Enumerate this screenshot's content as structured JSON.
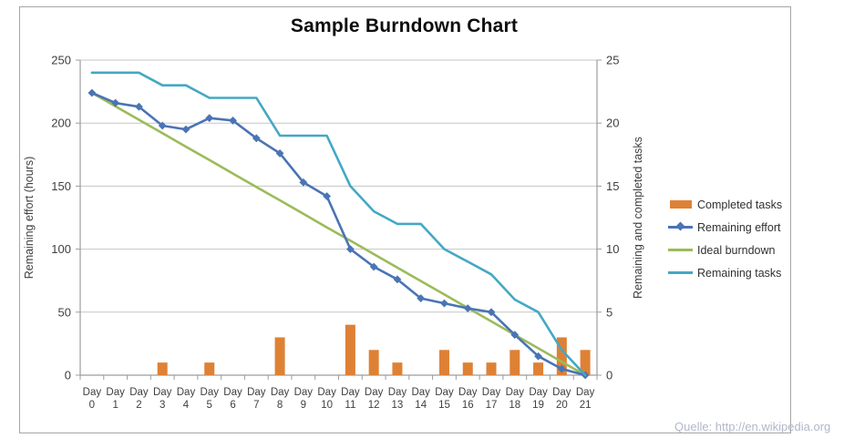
{
  "title": "Sample Burndown Chart",
  "watermark": "Quelle: http://en.wikipedia.org",
  "colors": {
    "completed": "#de8135",
    "effort": "#4a74b4",
    "ideal": "#9bbb59",
    "tasks": "#44a8c4",
    "gridline": "#c6c6c6",
    "axis": "#9c9c9c",
    "frame": "#a6a6a6",
    "tick_label": "#3f3f3f",
    "watermark": "#b3b7ca"
  },
  "chart_data": {
    "type": "combo-bar-line",
    "title": "Sample Burndown Chart",
    "categories": [
      "Day 0",
      "Day 1",
      "Day 2",
      "Day 3",
      "Day 4",
      "Day 5",
      "Day 6",
      "Day 7",
      "Day 8",
      "Day 9",
      "Day 10",
      "Day 11",
      "Day 12",
      "Day 13",
      "Day 14",
      "Day 15",
      "Day 16",
      "Day 17",
      "Day 18",
      "Day 19",
      "Day 20",
      "Day 21"
    ],
    "y_left": {
      "label": "Remaining effort (hours)",
      "ticks": [
        0,
        50,
        100,
        150,
        200,
        250
      ],
      "range": [
        0,
        250
      ]
    },
    "y_right": {
      "label": "Remaining and  completed tasks",
      "ticks": [
        0,
        5,
        10,
        15,
        20,
        25
      ],
      "range": [
        0,
        25
      ]
    },
    "grid": true,
    "legend_position": "right",
    "series": [
      {
        "name": "Completed tasks",
        "type": "bar",
        "axis": "right",
        "color_key": "completed",
        "values": [
          0,
          0,
          0,
          1,
          0,
          1,
          0,
          0,
          3,
          0,
          0,
          4,
          2,
          1,
          0,
          2,
          1,
          1,
          2,
          1,
          3,
          2
        ]
      },
      {
        "name": "Remaining effort",
        "type": "line",
        "marker": "diamond",
        "axis": "left",
        "color_key": "effort",
        "values": [
          224,
          216,
          213,
          198,
          195,
          204,
          202,
          188,
          176,
          153,
          142,
          100,
          86,
          76,
          61,
          57,
          53,
          50,
          32,
          15,
          5,
          0
        ]
      },
      {
        "name": "Ideal burndown",
        "type": "line",
        "axis": "left",
        "color_key": "ideal",
        "values": [
          224,
          213.3,
          202.7,
          192,
          181.3,
          170.7,
          160,
          149.3,
          138.7,
          128,
          117.3,
          106.7,
          96,
          85.3,
          74.7,
          64,
          53.3,
          42.7,
          32,
          21.3,
          10.7,
          0
        ]
      },
      {
        "name": "Remaining tasks",
        "type": "line",
        "axis": "right",
        "color_key": "tasks",
        "values": [
          24,
          24,
          24,
          23,
          23,
          22,
          22,
          22,
          19,
          19,
          19,
          15,
          13,
          12,
          12,
          10,
          9,
          8,
          6,
          5,
          2,
          0
        ]
      }
    ]
  }
}
